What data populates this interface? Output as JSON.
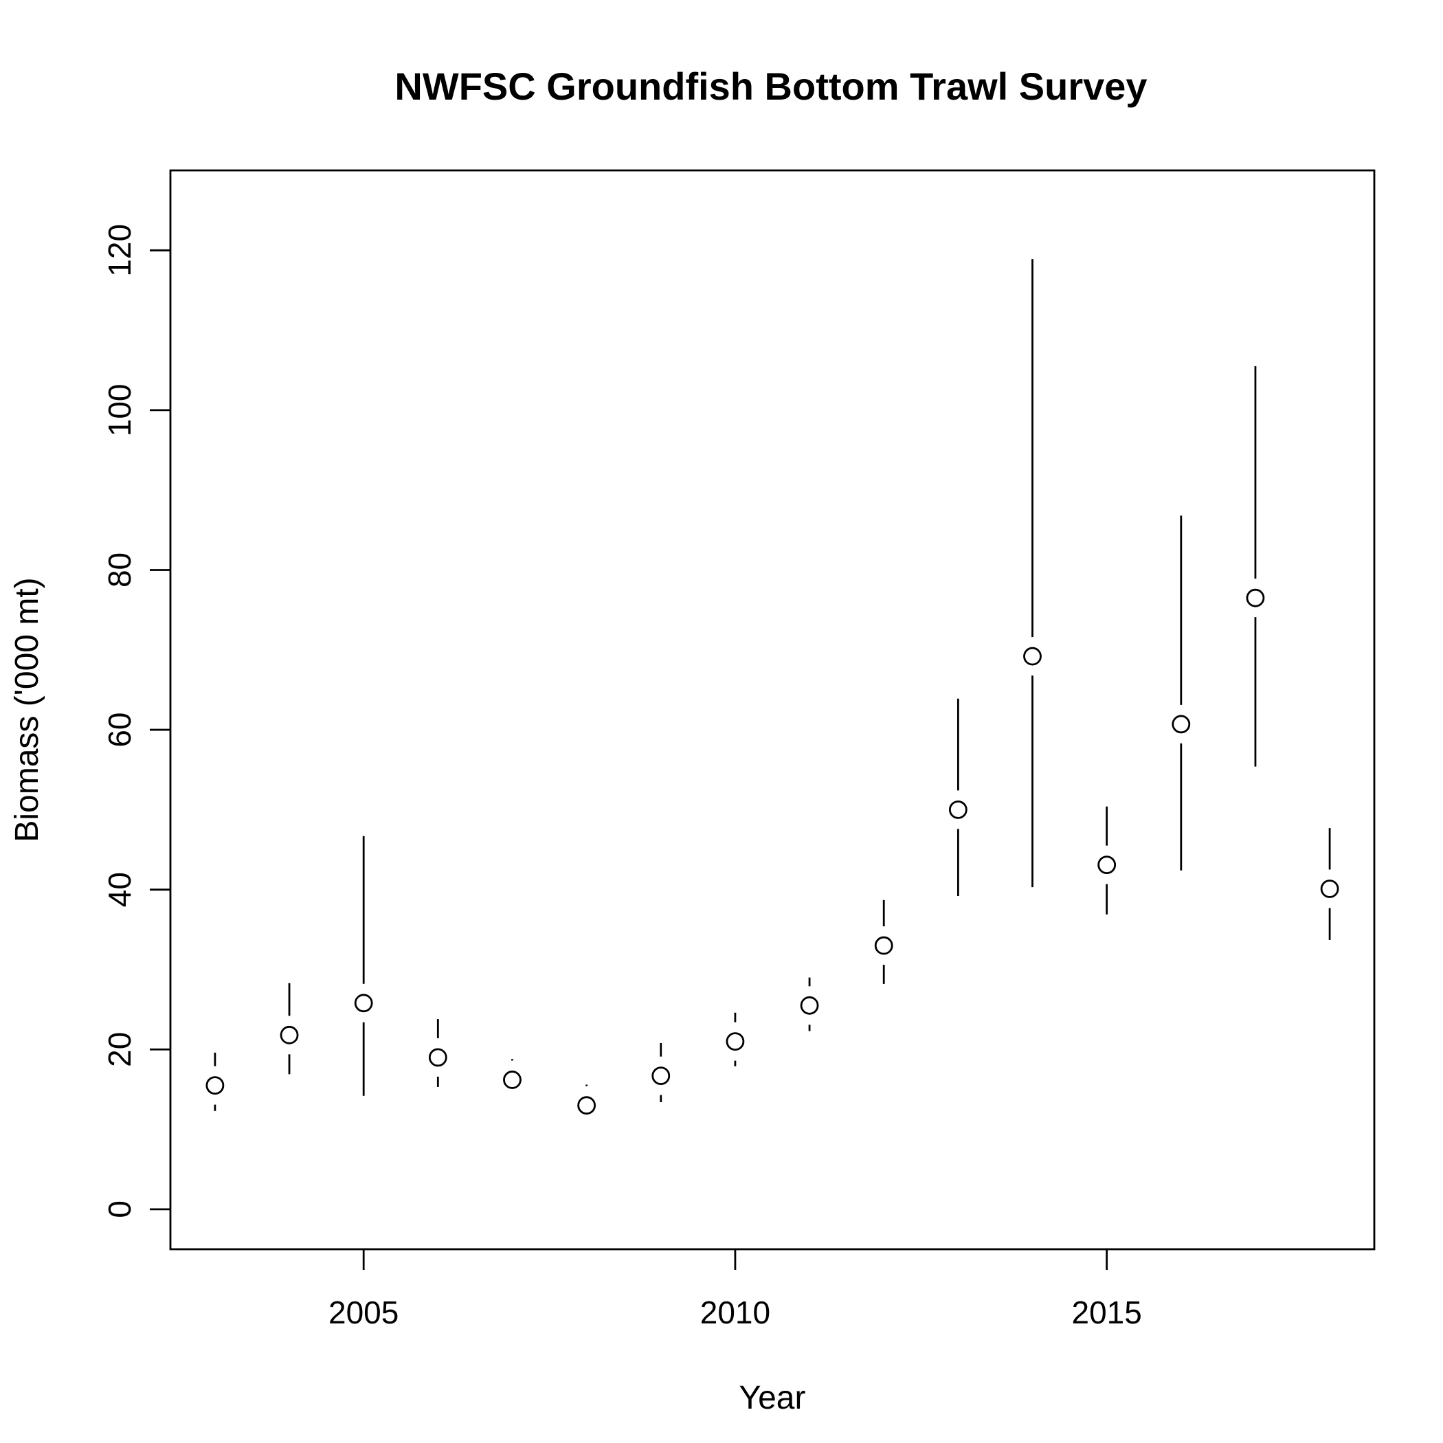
{
  "chart_data": {
    "type": "scatter",
    "title": "NWFSC Groundfish Bottom Trawl Survey",
    "xlabel": "Year",
    "ylabel": "Biomass ('000 mt)",
    "xlim": [
      2002.4,
      2018.6
    ],
    "ylim": [
      -5,
      130
    ],
    "xticks": [
      2005,
      2010,
      2015
    ],
    "yticks": [
      0,
      20,
      40,
      60,
      80,
      100,
      120
    ],
    "grid": false,
    "series": [
      {
        "x": [
          2003,
          2004,
          2005,
          2006,
          2007,
          2008,
          2009,
          2010,
          2011,
          2012,
          2013,
          2014,
          2015,
          2016,
          2017,
          2018
        ],
        "y": [
          15.5,
          21.8,
          25.8,
          19.0,
          16.2,
          13.0,
          16.7,
          21.0,
          25.5,
          33.0,
          50.0,
          69.2,
          43.1,
          60.7,
          76.5,
          40.1
        ],
        "lower": [
          12.3,
          16.9,
          14.2,
          15.3,
          13.9,
          10.7,
          13.4,
          17.9,
          22.3,
          28.2,
          39.2,
          40.3,
          36.9,
          42.4,
          55.4,
          33.7
        ],
        "upper": [
          19.6,
          28.3,
          46.7,
          23.8,
          18.8,
          15.6,
          20.8,
          24.6,
          29.0,
          38.7,
          63.9,
          118.9,
          50.4,
          86.8,
          105.5,
          47.7
        ]
      }
    ]
  }
}
